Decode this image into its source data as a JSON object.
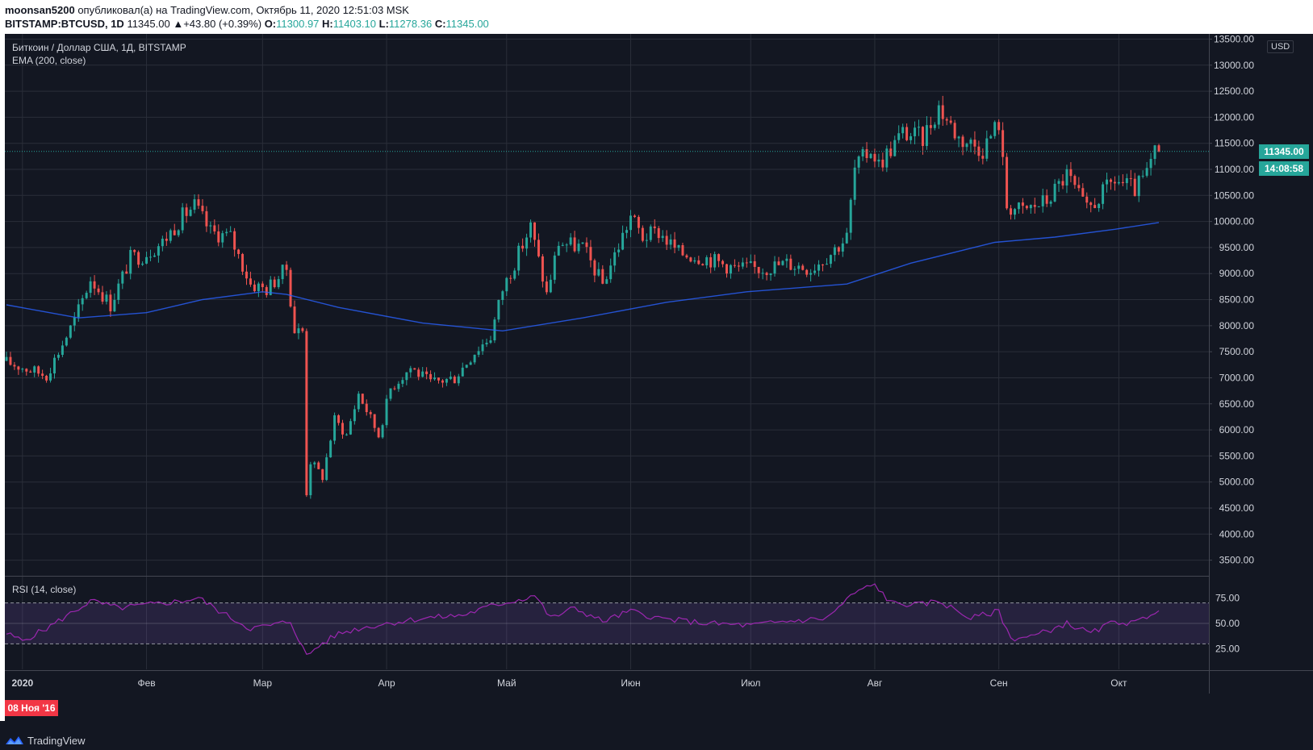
{
  "header": {
    "author": "moonsan5200",
    "published_text": "опубликовал(а) на TradingView.com, Октябрь 11, 2020 12:51:03 MSK",
    "symbol": "BITSTAMP:BTCUSD, 1D",
    "last": "11345.00",
    "change": "+43.80 (+0.39%)",
    "o_label": "O:",
    "o_value": "11300.97",
    "h_label": "H:",
    "h_value": "11403.10",
    "l_label": "L:",
    "l_value": "11278.36",
    "c_label": "C:",
    "c_value": "11345.00"
  },
  "legend": {
    "title": "Биткоин / Доллар США, 1Д, BITSTAMP",
    "ema": "EMA (200, close)",
    "rsi": "RSI (14, close)"
  },
  "scale": {
    "currency": "USD",
    "price_ticks": [
      "13500.00",
      "13000.00",
      "12500.00",
      "12000.00",
      "11500.00",
      "11000.00",
      "10500.00",
      "10000.00",
      "9500.00",
      "9000.00",
      "8500.00",
      "8000.00",
      "7500.00",
      "7000.00",
      "6500.00",
      "6000.00",
      "5500.00",
      "5000.00",
      "4500.00",
      "4000.00",
      "3500.00"
    ],
    "rsi_ticks": [
      "75.00",
      "50.00",
      "25.00"
    ],
    "price_badge": "11345.00",
    "time_badge": "14:08:58"
  },
  "time_axis": {
    "date_badge": "08 Ноя '16",
    "labels": [
      "2020",
      "Фев",
      "Мар",
      "Апр",
      "Май",
      "Июн",
      "Июл",
      "Авг",
      "Сен",
      "Окт"
    ]
  },
  "footer": {
    "brand": "TradingView"
  },
  "colors": {
    "background": "#131722",
    "up": "#26a69a",
    "down": "#ef5350",
    "ema": "#2962ff",
    "rsi": "#9c27b0",
    "grid": "#2a2e39"
  },
  "chart_data": {
    "type": "candlestick",
    "title": "Биткоин / Доллар США, 1Д, BITSTAMP",
    "x_start": "2019-12-28",
    "x_end": "2020-10-11",
    "ylim": [
      3200,
      13600
    ],
    "grid": true,
    "anchors_close": [
      [
        "2019-12-28",
        7300
      ],
      [
        "2020-01-01",
        7200
      ],
      [
        "2020-01-07",
        7050
      ],
      [
        "2020-01-14",
        8100
      ],
      [
        "2020-01-18",
        8900
      ],
      [
        "2020-01-23",
        8400
      ],
      [
        "2020-01-28",
        9300
      ],
      [
        "2020-01-31",
        9350
      ],
      [
        "2020-02-05",
        9600
      ],
      [
        "2020-02-10",
        10100
      ],
      [
        "2020-02-13",
        10300
      ],
      [
        "2020-02-17",
        9800
      ],
      [
        "2020-02-22",
        9700
      ],
      [
        "2020-02-27",
        8800
      ],
      [
        "2020-03-02",
        8700
      ],
      [
        "2020-03-07",
        9100
      ],
      [
        "2020-03-09",
        7900
      ],
      [
        "2020-03-11",
        7900
      ],
      [
        "2020-03-12",
        4800
      ],
      [
        "2020-03-13",
        5400
      ],
      [
        "2020-03-16",
        5100
      ],
      [
        "2020-03-19",
        6200
      ],
      [
        "2020-03-22",
        5900
      ],
      [
        "2020-03-25",
        6700
      ],
      [
        "2020-03-30",
        5900
      ],
      [
        "2020-04-02",
        6800
      ],
      [
        "2020-04-07",
        7200
      ],
      [
        "2020-04-12",
        6900
      ],
      [
        "2020-04-18",
        7000
      ],
      [
        "2020-04-23",
        7500
      ],
      [
        "2020-04-27",
        7800
      ],
      [
        "2020-04-30",
        8700
      ],
      [
        "2020-05-07",
        9900
      ],
      [
        "2020-05-11",
        8600
      ],
      [
        "2020-05-14",
        9600
      ],
      [
        "2020-05-20",
        9500
      ],
      [
        "2020-05-25",
        8800
      ],
      [
        "2020-06-01",
        10100
      ],
      [
        "2020-06-04",
        9700
      ],
      [
        "2020-06-08",
        9800
      ],
      [
        "2020-06-13",
        9400
      ],
      [
        "2020-06-20",
        9300
      ],
      [
        "2020-06-27",
        9100
      ],
      [
        "2020-07-04",
        9100
      ],
      [
        "2020-07-10",
        9200
      ],
      [
        "2020-07-16",
        9100
      ],
      [
        "2020-07-21",
        9400
      ],
      [
        "2020-07-25",
        9700
      ],
      [
        "2020-07-27",
        11000
      ],
      [
        "2020-07-31",
        11400
      ],
      [
        "2020-08-02",
        11100
      ],
      [
        "2020-08-08",
        11700
      ],
      [
        "2020-08-13",
        11600
      ],
      [
        "2020-08-17",
        12200
      ],
      [
        "2020-08-22",
        11600
      ],
      [
        "2020-08-28",
        11400
      ],
      [
        "2020-09-01",
        11900
      ],
      [
        "2020-09-03",
        10300
      ],
      [
        "2020-09-07",
        10200
      ],
      [
        "2020-09-13",
        10400
      ],
      [
        "2020-09-18",
        10900
      ],
      [
        "2020-09-23",
        10200
      ],
      [
        "2020-09-30",
        10800
      ],
      [
        "2020-10-05",
        10600
      ],
      [
        "2020-10-08",
        10900
      ],
      [
        "2020-10-10",
        11300
      ],
      [
        "2020-10-11",
        11345
      ]
    ],
    "ema": {
      "name": "EMA (200, close)",
      "points": [
        [
          "2019-12-28",
          8400
        ],
        [
          "2020-01-15",
          8150
        ],
        [
          "2020-02-01",
          8250
        ],
        [
          "2020-02-15",
          8500
        ],
        [
          "2020-03-01",
          8650
        ],
        [
          "2020-03-07",
          8600
        ],
        [
          "2020-03-20",
          8350
        ],
        [
          "2020-04-10",
          8050
        ],
        [
          "2020-04-30",
          7900
        ],
        [
          "2020-05-20",
          8150
        ],
        [
          "2020-06-10",
          8450
        ],
        [
          "2020-06-30",
          8650
        ],
        [
          "2020-07-25",
          8800
        ],
        [
          "2020-08-10",
          9200
        ],
        [
          "2020-08-31",
          9600
        ],
        [
          "2020-09-15",
          9700
        ],
        [
          "2020-09-30",
          9850
        ],
        [
          "2020-10-11",
          9980
        ]
      ]
    },
    "rsi": {
      "name": "RSI (14, close)",
      "ylim": [
        5,
        95
      ],
      "levels": [
        70,
        30
      ],
      "points": [
        [
          "2019-12-28",
          40
        ],
        [
          "2020-01-01",
          33
        ],
        [
          "2020-01-07",
          45
        ],
        [
          "2020-01-14",
          62
        ],
        [
          "2020-01-18",
          72
        ],
        [
          "2020-01-25",
          65
        ],
        [
          "2020-02-01",
          68
        ],
        [
          "2020-02-10",
          72
        ],
        [
          "2020-02-14",
          75
        ],
        [
          "2020-02-20",
          60
        ],
        [
          "2020-02-27",
          45
        ],
        [
          "2020-03-03",
          48
        ],
        [
          "2020-03-08",
          52
        ],
        [
          "2020-03-10",
          35
        ],
        [
          "2020-03-12",
          18
        ],
        [
          "2020-03-15",
          28
        ],
        [
          "2020-03-20",
          40
        ],
        [
          "2020-03-25",
          45
        ],
        [
          "2020-04-01",
          50
        ],
        [
          "2020-04-10",
          55
        ],
        [
          "2020-04-20",
          58
        ],
        [
          "2020-04-28",
          68
        ],
        [
          "2020-05-05",
          74
        ],
        [
          "2020-05-08",
          78
        ],
        [
          "2020-05-12",
          55
        ],
        [
          "2020-05-18",
          65
        ],
        [
          "2020-05-25",
          52
        ],
        [
          "2020-06-01",
          62
        ],
        [
          "2020-06-08",
          55
        ],
        [
          "2020-06-20",
          50
        ],
        [
          "2020-07-01",
          48
        ],
        [
          "2020-07-10",
          52
        ],
        [
          "2020-07-20",
          55
        ],
        [
          "2020-07-27",
          80
        ],
        [
          "2020-08-01",
          88
        ],
        [
          "2020-08-05",
          70
        ],
        [
          "2020-08-12",
          68
        ],
        [
          "2020-08-17",
          72
        ],
        [
          "2020-08-25",
          55
        ],
        [
          "2020-09-01",
          62
        ],
        [
          "2020-09-04",
          35
        ],
        [
          "2020-09-10",
          38
        ],
        [
          "2020-09-18",
          50
        ],
        [
          "2020-09-24",
          40
        ],
        [
          "2020-09-30",
          52
        ],
        [
          "2020-10-05",
          50
        ],
        [
          "2020-10-11",
          64
        ]
      ]
    }
  }
}
